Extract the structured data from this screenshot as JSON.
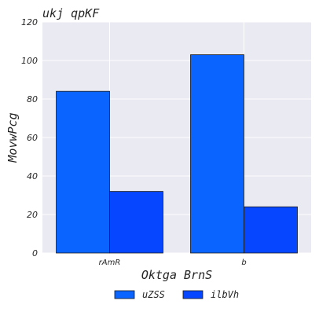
{
  "chart_data": {
    "type": "bar",
    "title": "ukj qpKF",
    "xlabel": "Oktga BrnS",
    "ylabel": "MovwPcg",
    "categories": [
      "rAmR",
      "b"
    ],
    "series": [
      {
        "name": "uZSS",
        "values": [
          84,
          103
        ],
        "color": "#0a64ff"
      },
      {
        "name": "ilbVh",
        "values": [
          32,
          24
        ],
        "color": "#0646ff"
      }
    ],
    "ylim": [
      0,
      120
    ],
    "yticks": [
      0,
      20,
      40,
      60,
      80,
      100,
      120
    ],
    "grid": true,
    "legend": "bottom-center",
    "background": "#eaeaf2"
  }
}
